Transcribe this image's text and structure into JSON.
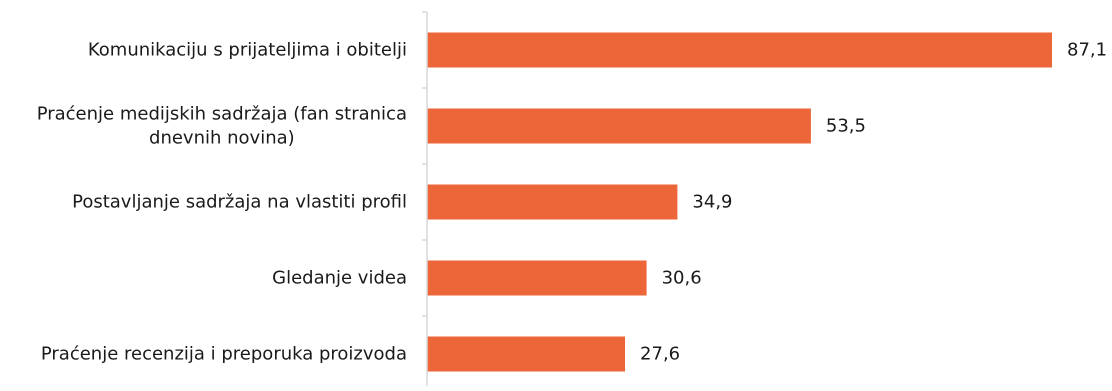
{
  "chart_data": {
    "type": "bar",
    "orientation": "horizontal",
    "categories": [
      [
        "Komunikaciju s prijateljima i obitelji"
      ],
      [
        "Praćenje medijskih sadržaja (fan stranica",
        "dnevnih novina)"
      ],
      [
        "Postavljanje sadržaja na vlastiti profil"
      ],
      [
        "Gledanje videa"
      ],
      [
        "Praćenje recenzija i preporuka proizvoda"
      ]
    ],
    "values": [
      87.1,
      53.5,
      34.9,
      30.6,
      27.6
    ],
    "value_labels": [
      "87,1",
      "53,5",
      "34,9",
      "30,6",
      "27,6"
    ],
    "xlim": [
      0,
      87.1
    ],
    "bar_color": "#ED6639",
    "axis_color": "#d9d9d9",
    "grid": false,
    "legend": "none"
  }
}
